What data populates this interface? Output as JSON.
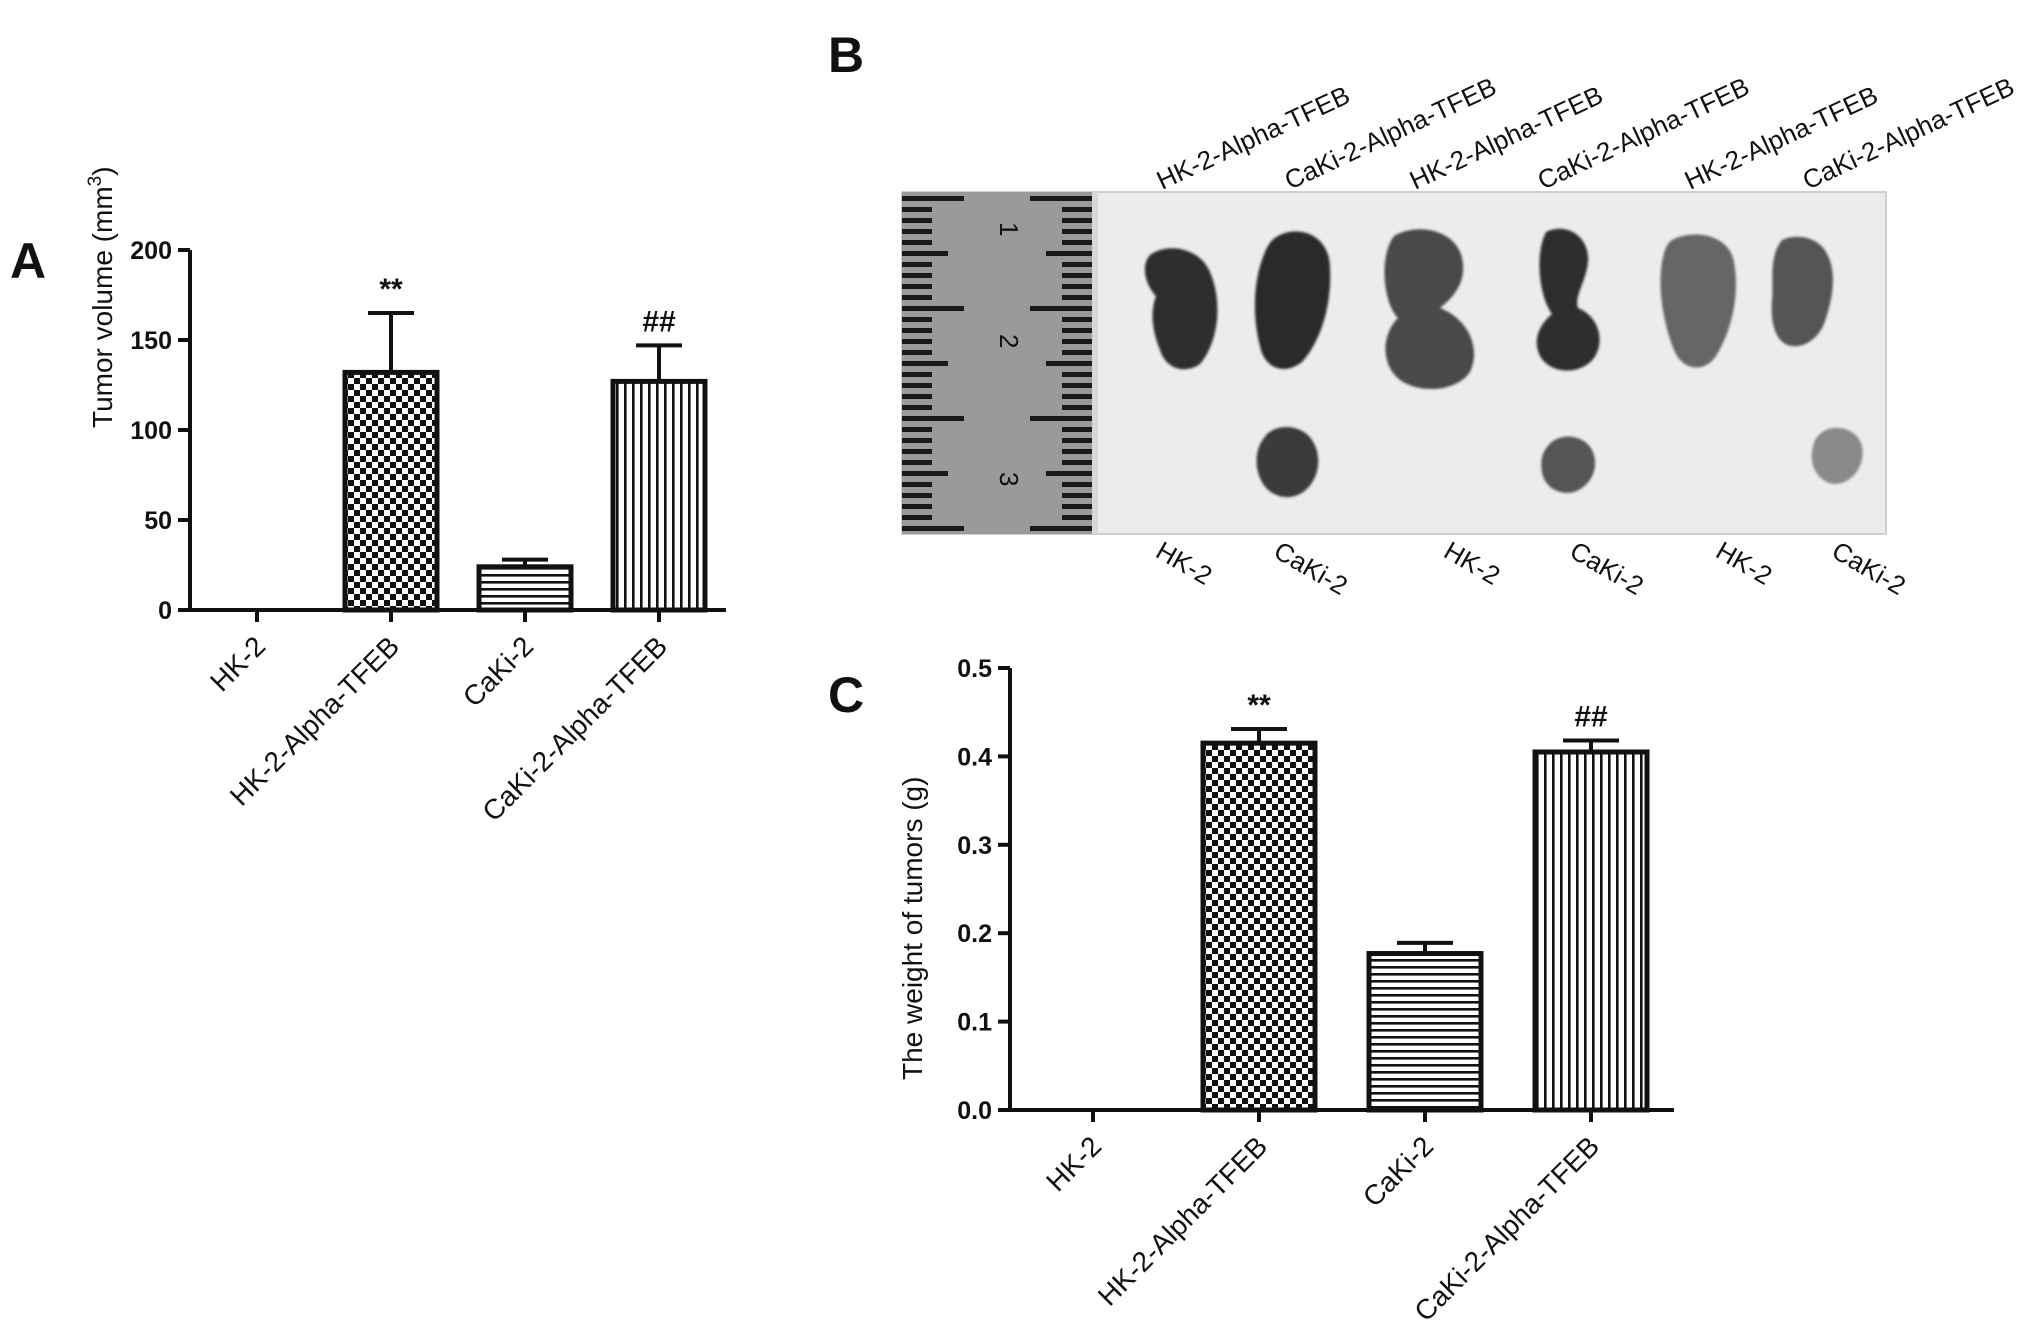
{
  "panels": {
    "a": {
      "letter": "A"
    },
    "b": {
      "letter": "B",
      "top_labels": [
        "HK-2-Alpha-TFEB",
        "CaKi-2-Alpha-TFEB",
        "HK-2-Alpha-TFEB",
        "CaKi-2-Alpha-TFEB",
        "HK-2-Alpha-TFEB",
        "CaKi-2-Alpha-TFEB"
      ],
      "bottom_labels": [
        "HK-2",
        "CaKi-2",
        "HK-2",
        "CaKi-2",
        "HK-2",
        "CaKi-2"
      ],
      "ruler_numbers": [
        "1",
        "2",
        "3"
      ]
    },
    "c": {
      "letter": "C"
    }
  },
  "colors": {
    "ink": "#111111",
    "photo_background": "#ececec",
    "ruler": "#9a9a9a",
    "tumor": "#2f2f2f"
  },
  "chart_data": [
    {
      "panel": "A",
      "type": "bar",
      "categories": [
        "HK-2",
        "HK-2-Alpha-TFEB",
        "CaKi-2",
        "CaKi-2-Alpha-TFEB"
      ],
      "values": [
        0,
        132,
        24,
        127
      ],
      "error": [
        0,
        33,
        4,
        20
      ],
      "significance": [
        "",
        "**",
        "",
        "##"
      ],
      "patterns": [
        "none",
        "checker",
        "horizontal",
        "vertical"
      ],
      "ylabel_main": "Tumor volume (mm",
      "ylabel_sup": "3",
      "ylabel_end": ")",
      "ylim": [
        0,
        200
      ],
      "yticks": [
        0,
        50,
        100,
        150,
        200
      ],
      "ytick_labels": [
        "0",
        "50",
        "100",
        "150",
        "200"
      ]
    },
    {
      "panel": "C",
      "type": "bar",
      "categories": [
        "HK-2",
        "HK-2-Alpha-TFEB",
        "CaKi-2",
        "CaKi-2-Alpha-TFEB"
      ],
      "values": [
        0,
        0.415,
        0.177,
        0.405
      ],
      "error": [
        0,
        0.016,
        0.012,
        0.013
      ],
      "significance": [
        "",
        "**",
        "",
        "##"
      ],
      "patterns": [
        "none",
        "checker",
        "horizontal",
        "vertical"
      ],
      "ylabel": "The weight of tumors (g)",
      "ylim": [
        0,
        0.5
      ],
      "yticks": [
        0,
        0.1,
        0.2,
        0.3,
        0.4,
        0.5
      ],
      "ytick_labels": [
        "0.0",
        "0.1",
        "0.2",
        "0.3",
        "0.4",
        "0.5"
      ]
    }
  ]
}
